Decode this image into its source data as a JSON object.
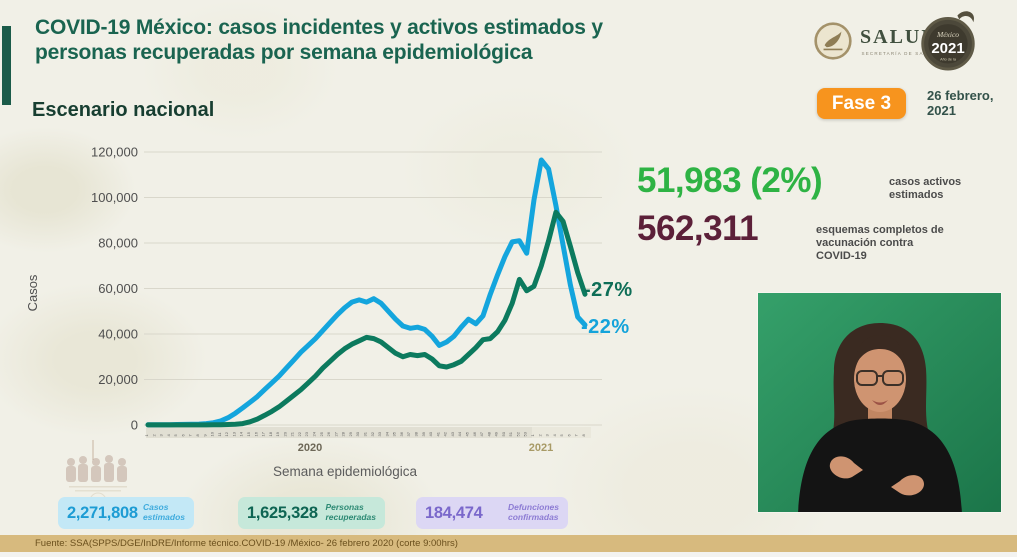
{
  "header": {
    "title": "COVID-19 México: casos incidentes y activos estimados y\npersonas recuperadas por semana epidemiológica",
    "subtitle": "Escenario nacional",
    "phase_badge": "Fase 3",
    "date": "26 febrero,\n2021",
    "logo": {
      "name": "SALUD",
      "subname": "SECRETARÍA DE SALUD",
      "badge_top": "México",
      "badge_year": "2021",
      "badge_sub": "Año de la"
    }
  },
  "chart_data": {
    "type": "line",
    "title": "",
    "xlabel": "Semana epidemiológica",
    "ylabel": "Casos",
    "ylim": [
      0,
      120000
    ],
    "grid": true,
    "legend": false,
    "y_ticks": [
      "120,000",
      "100,000",
      "80,000",
      "60,000",
      "40,000",
      "20,000",
      "0"
    ],
    "x_year_labels": [
      "2020",
      "2021"
    ],
    "x_labels": [
      "1",
      "2",
      "3",
      "4",
      "5",
      "6",
      "7",
      "8",
      "9",
      "10",
      "11",
      "12",
      "13",
      "14",
      "15",
      "16",
      "17",
      "18",
      "19",
      "20",
      "21",
      "22",
      "23",
      "24",
      "25",
      "26",
      "27",
      "28",
      "29",
      "30",
      "31",
      "32",
      "33",
      "34",
      "35",
      "36",
      "37",
      "38",
      "39",
      "40",
      "41",
      "42",
      "43",
      "44",
      "45",
      "46",
      "47",
      "48",
      "49",
      "50",
      "51",
      "52",
      "53",
      "1",
      "2",
      "3",
      "4",
      "5",
      "6",
      "7",
      "8"
    ],
    "series": [
      {
        "name": "casos incidentes estimados",
        "color": "#14a5dd",
        "values": [
          100,
          100,
          150,
          150,
          200,
          250,
          300,
          400,
          600,
          1000,
          1800,
          3200,
          5200,
          7500,
          10000,
          12500,
          15500,
          18500,
          21500,
          25000,
          28500,
          32000,
          35000,
          38000,
          41500,
          45000,
          48500,
          51500,
          54000,
          55000,
          54000,
          55500,
          53500,
          50000,
          46500,
          43500,
          42500,
          43000,
          42000,
          39000,
          35000,
          36500,
          39000,
          43000,
          46500,
          44500,
          48000,
          57500,
          66000,
          74000,
          80500,
          81000,
          75500,
          99000,
          116500,
          112500,
          96500,
          79000,
          61500,
          47500,
          44000
        ]
      },
      {
        "name": "personas recuperadas",
        "color": "#0c7a5e",
        "values": [
          50,
          50,
          50,
          50,
          50,
          50,
          50,
          50,
          50,
          100,
          150,
          200,
          300,
          600,
          1400,
          2600,
          4200,
          6000,
          8000,
          10500,
          13000,
          15500,
          18500,
          21500,
          25000,
          28000,
          31000,
          33500,
          35500,
          37000,
          38500,
          38000,
          36500,
          34000,
          31500,
          30000,
          31000,
          30500,
          31000,
          29000,
          26000,
          25500,
          26500,
          28000,
          31000,
          34000,
          37500,
          38000,
          41000,
          46000,
          53500,
          64000,
          59000,
          61000,
          70000,
          81000,
          93500,
          89500,
          78500,
          67000,
          57500
        ]
      }
    ],
    "annotations": [
      {
        "text": "-27%",
        "color": "#0e6e57",
        "series": "personas recuperadas"
      },
      {
        "text": "-22%",
        "color": "#14a3da",
        "series": "casos incidentes estimados"
      }
    ]
  },
  "stats": {
    "active_cases": {
      "value": "51,983 (2%)",
      "label": "casos activos\nestimados",
      "color": "#2eb344"
    },
    "vaccination": {
      "value": "562,311",
      "label": "esquemas completos de\nvacunación contra\nCOVID-19",
      "color": "#5c2039"
    }
  },
  "summary_boxes": [
    {
      "value": "2,271,808",
      "label": "Casos\nestimados",
      "bg": "#c3e8f6",
      "value_color": "#1d9cd4",
      "label_color": "#3fabdd"
    },
    {
      "value": "1,625,328",
      "label": "Personas\nrecuperadas",
      "bg": "#c6e8da",
      "value_color": "#0e6553",
      "label_color": "#2d8a74"
    },
    {
      "value": "184,474",
      "label": "Defunciones\nconfirmadas",
      "bg": "#dcd7f4",
      "value_color": "#7a68cb",
      "label_color": "#8d7cd4"
    }
  ],
  "footer": {
    "source": "Fuente: SSA(SPPS/DGE/InDRE/Informe técnico.COVID-19 /México- 26 febrero 2020 (corte 9:00hrs)"
  },
  "theme": {
    "title_green": "#1a6450",
    "phase_badge_orange": "#f7941e",
    "line_blue": "#14a5dd",
    "line_green": "#0c7a5e",
    "footer_tan": "#d7ba7e"
  }
}
